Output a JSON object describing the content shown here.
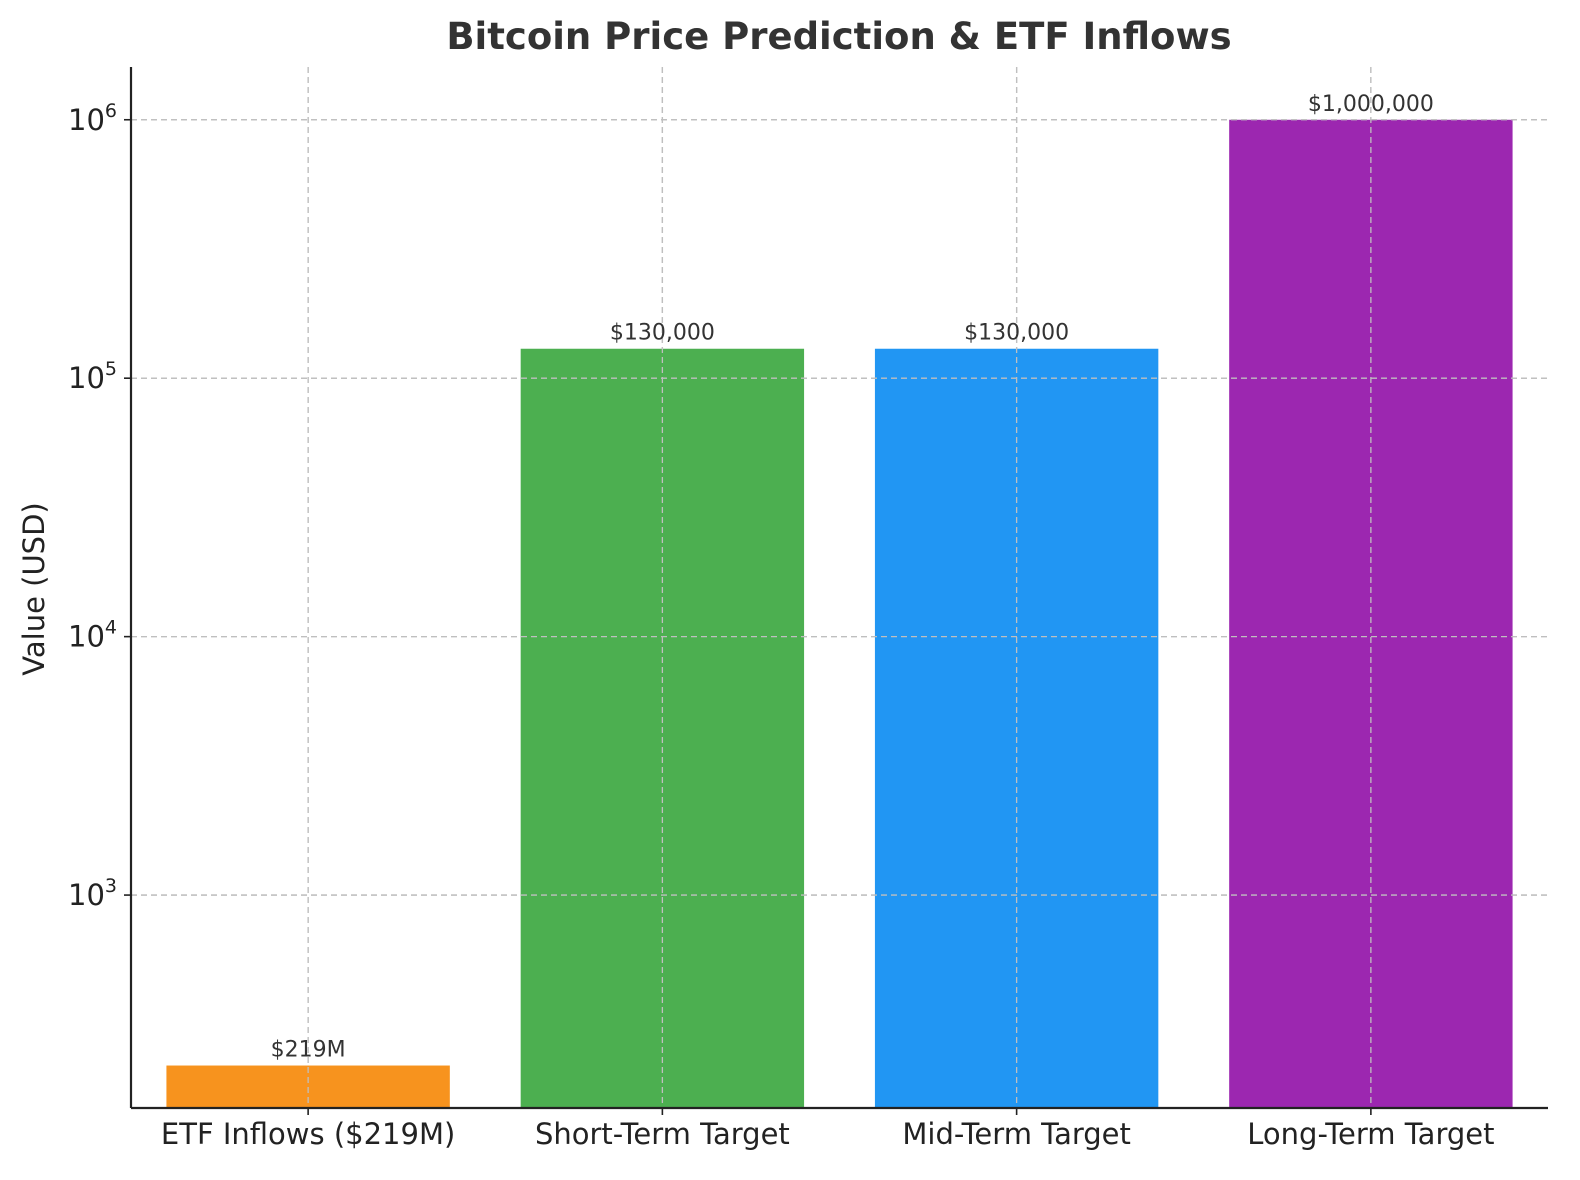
{
  "chart_data": {
    "type": "bar",
    "title": "Bitcoin Price Prediction & ETF Inflows",
    "ylabel": "Value (USD)",
    "xlabel": "",
    "y_scale": "log",
    "ylim": [
      150,
      1600000
    ],
    "grid": true,
    "categories": [
      "ETF Inflows ($219M)",
      "Short-Term Target",
      "Mid-Term Target",
      "Long-Term Target"
    ],
    "values": [
      219,
      130000,
      130000,
      1000000
    ],
    "data_labels": [
      "$219M",
      "$130,000",
      "$130,000",
      "$1,000,000"
    ],
    "colors": [
      "#F7931E",
      "#4CAF50",
      "#2196F3",
      "#9C27B0"
    ],
    "y_ticks": [
      {
        "value": 1000,
        "base": "10",
        "exp": "3"
      },
      {
        "value": 10000,
        "base": "10",
        "exp": "4"
      },
      {
        "value": 100000,
        "base": "10",
        "exp": "5"
      },
      {
        "value": 1000000,
        "base": "10",
        "exp": "6"
      }
    ]
  }
}
